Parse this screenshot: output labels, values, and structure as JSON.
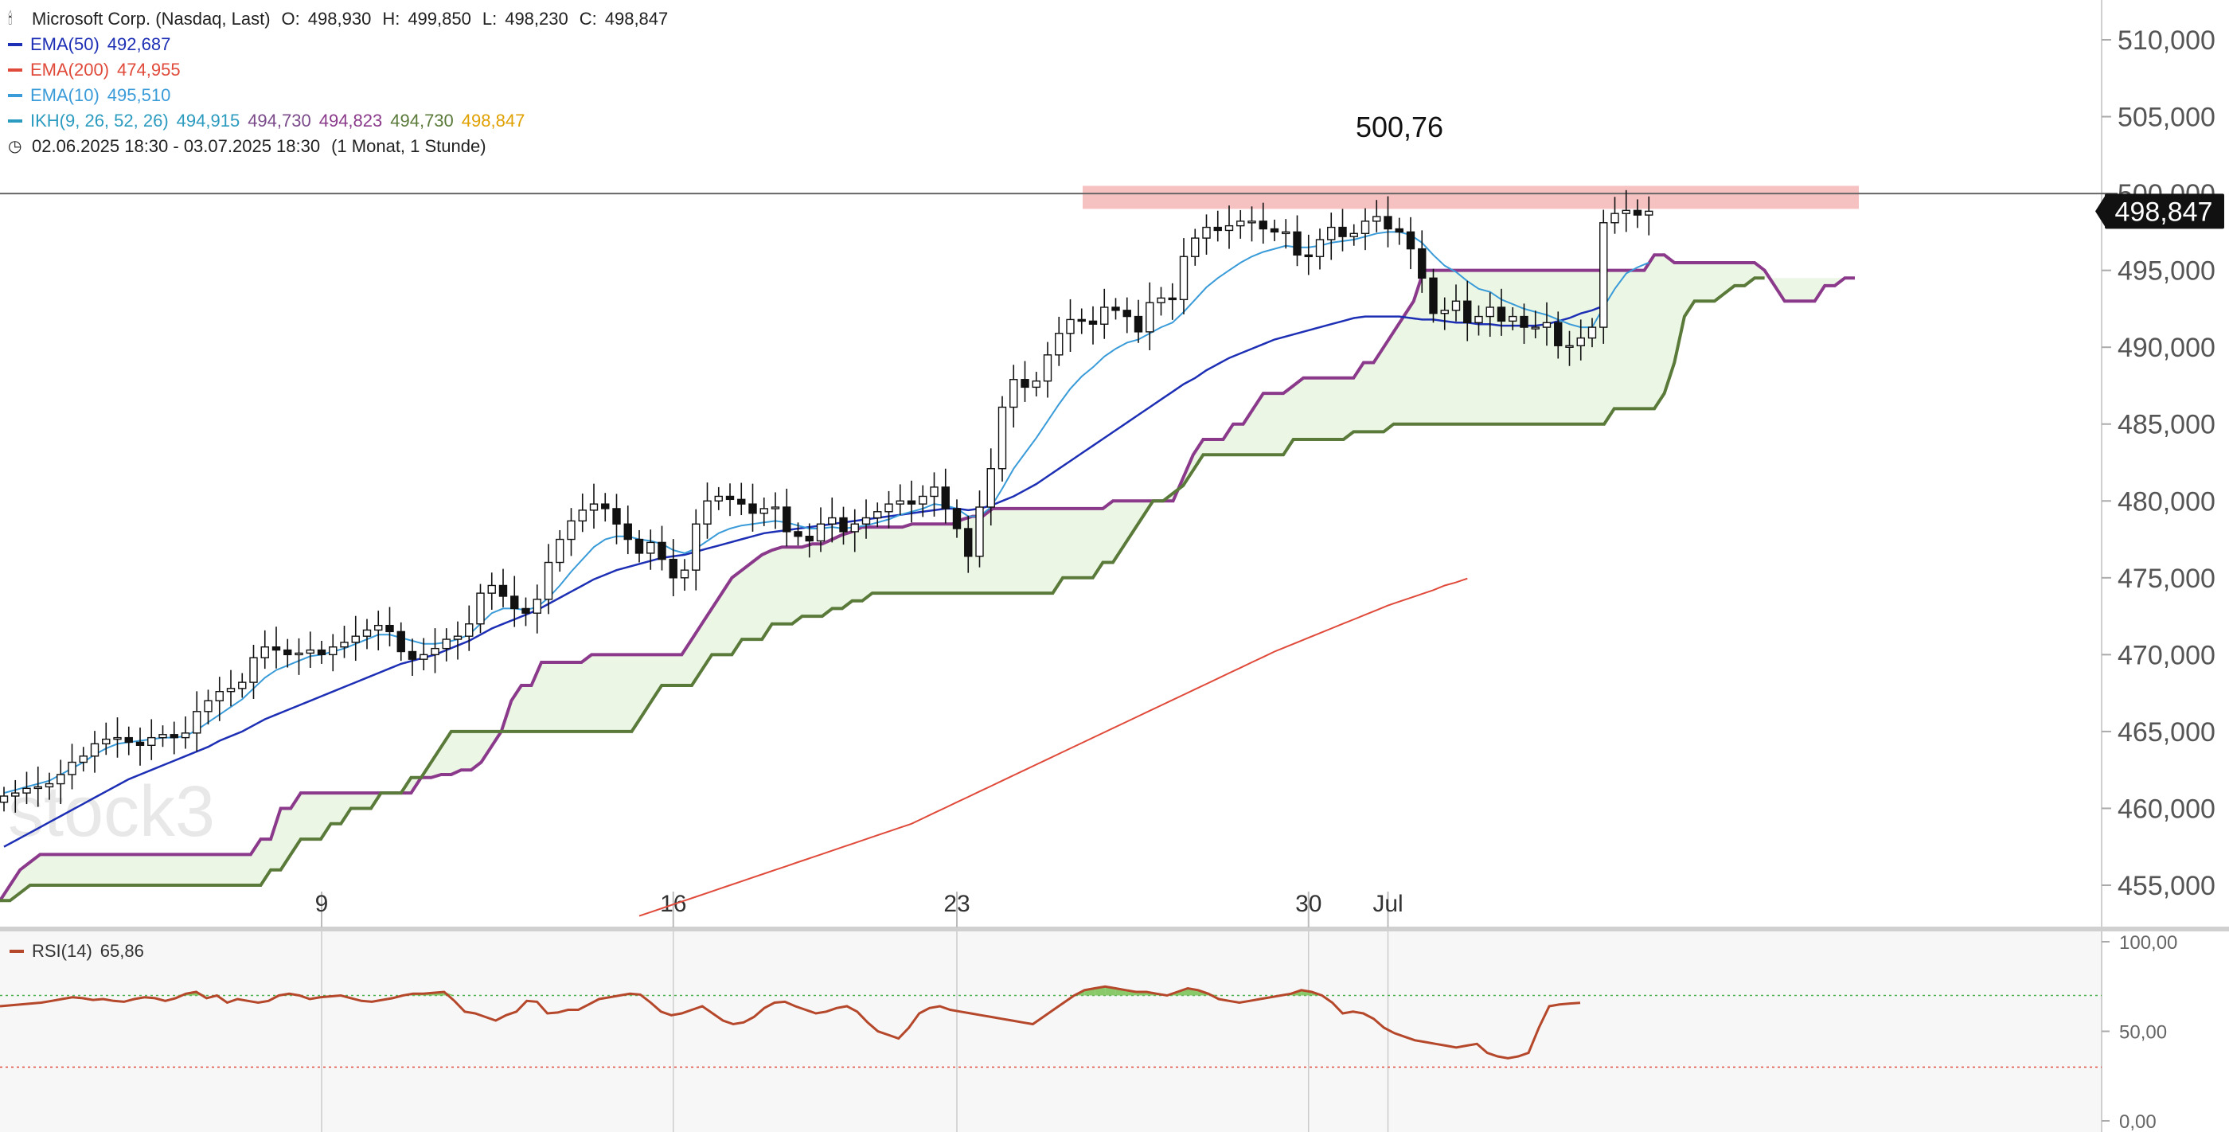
{
  "header": {
    "instrument": "Microsoft Corp. (Nasdaq, Last)",
    "ohlc": {
      "O": "498,930",
      "H": "499,850",
      "L": "498,230",
      "C": "498,847"
    },
    "indicators": [
      {
        "label": "EMA(50)",
        "values": [
          "492,687"
        ],
        "color": "#1d2fb4"
      },
      {
        "label": "EMA(200)",
        "values": [
          "474,955"
        ],
        "color": "#e04a3a"
      },
      {
        "label": "EMA(10)",
        "values": [
          "495,510"
        ],
        "color": "#3a9bd9"
      },
      {
        "label": "IKH(9, 26, 52, 26)",
        "values": [
          "494,915",
          "494,730",
          "494,823",
          "494,730",
          "498,847"
        ],
        "color": "#2b9bbf",
        "value_colors": [
          "#2b9bbf",
          "#7a4a8a",
          "#8b3a8b",
          "#5a7a3a",
          "#e0a000"
        ]
      }
    ],
    "range": "02.06.2025 18:30 - 03.07.2025 18:30",
    "period": "(1 Monat, 1 Stunde)"
  },
  "rsi": {
    "label": "RSI(14)",
    "value": "65,86",
    "ticks": [
      "100,00",
      "50,00",
      "0,00"
    ]
  },
  "watermark": "stock3",
  "chart_data": {
    "type": "candlestick",
    "x_labels": [
      {
        "text": "9",
        "bar": 28
      },
      {
        "text": "16",
        "bar": 59
      },
      {
        "text": "23",
        "bar": 84
      },
      {
        "text": "30",
        "bar": 115
      },
      {
        "text": "Jul",
        "bar": 122
      }
    ],
    "y_ticks": [
      "510,000",
      "505,000",
      "500,000",
      "495,000",
      "490,000",
      "485,000",
      "480,000",
      "475,000",
      "470,000",
      "465,000",
      "460,000",
      "455,000"
    ],
    "ylim": [
      453,
      512
    ],
    "current_price": "498,847",
    "current_price_value": 498.847,
    "horizontal_line": 500.0,
    "resistance_zone": [
      499.0,
      500.5
    ],
    "peak_annotation": {
      "text": "500,76",
      "value": 500.76
    },
    "series_close": [
      460.8,
      461.0,
      461.3,
      461.4,
      461.6,
      462.2,
      463.0,
      463.4,
      464.2,
      464.5,
      464.6,
      464.3,
      464.1,
      464.6,
      464.8,
      464.6,
      464.9,
      466.3,
      467.0,
      467.6,
      467.8,
      468.2,
      469.8,
      470.5,
      470.3,
      470.0,
      470.1,
      470.3,
      470.0,
      470.5,
      470.8,
      471.2,
      471.6,
      471.9,
      471.5,
      470.2,
      469.7,
      470.0,
      470.4,
      471.0,
      471.2,
      472.0,
      474.0,
      474.5,
      473.8,
      473.0,
      472.7,
      473.6,
      476.0,
      477.5,
      478.7,
      479.4,
      479.8,
      479.5,
      478.5,
      477.5,
      476.6,
      477.3,
      476.2,
      475.0,
      475.5,
      478.5,
      480.0,
      480.3,
      480.1,
      479.8,
      479.2,
      479.5,
      479.6,
      478.0,
      477.7,
      477.4,
      478.5,
      478.9,
      478.0,
      478.5,
      478.9,
      479.3,
      479.8,
      480.0,
      479.8,
      480.3,
      480.9,
      479.5,
      478.2,
      476.4,
      479.6,
      482.1,
      486.1,
      487.9,
      487.4,
      487.8,
      489.5,
      490.9,
      491.8,
      491.7,
      491.5,
      492.6,
      492.4,
      492.0,
      491.0,
      492.9,
      493.2,
      493.1,
      495.9,
      497.1,
      497.8,
      497.6,
      497.9,
      498.2,
      498.2,
      497.7,
      497.5,
      497.5,
      496.0,
      495.9,
      497.0,
      497.8,
      497.2,
      497.4,
      498.2,
      498.5,
      497.7,
      497.5,
      496.4,
      494.5,
      492.2,
      492.4,
      493.0,
      491.6,
      492.0,
      492.6,
      491.7,
      492.0,
      491.3,
      491.3,
      491.6,
      490.1,
      490.1,
      490.6,
      491.3,
      498.1,
      498.7,
      498.9,
      498.6,
      498.847
    ],
    "series_rsi": [
      64,
      64.5,
      65,
      65.5,
      66,
      67,
      68,
      69,
      68.5,
      67.5,
      68,
      67,
      66.5,
      68,
      69,
      68.5,
      67,
      68.5,
      71,
      72,
      68.5,
      70,
      66,
      68,
      67,
      66,
      67,
      70,
      71,
      70,
      68,
      69,
      69.5,
      70,
      68.5,
      67,
      66.5,
      67.5,
      68.5,
      70,
      71,
      71,
      71.5,
      72,
      67,
      61,
      60,
      58,
      56,
      59,
      61,
      67,
      66.5,
      60,
      60.5,
      62,
      62,
      65,
      68,
      69,
      70,
      71,
      70.5,
      66,
      61,
      59,
      60,
      62,
      64,
      60,
      56,
      54,
      55,
      58,
      63,
      66,
      66.5,
      64,
      62,
      60,
      61,
      63,
      64,
      61,
      55,
      50,
      48,
      46,
      52,
      60,
      63,
      64,
      62,
      61,
      60,
      59,
      58,
      57,
      56,
      55,
      54,
      58,
      62,
      66,
      70,
      73,
      74,
      75,
      74,
      73,
      72,
      72,
      71,
      70,
      72,
      74,
      73,
      71,
      68,
      67,
      66,
      67,
      68,
      69,
      70,
      71,
      73,
      72,
      70,
      66,
      60,
      61,
      60,
      57,
      52,
      49,
      47,
      45,
      44,
      43,
      42,
      41,
      42,
      43,
      38,
      36,
      35,
      36,
      38,
      52,
      64,
      65,
      65.5,
      65.86
    ],
    "series_ema10": [
      461,
      461.2,
      461.4,
      461.6,
      461.8,
      462.2,
      462.6,
      463.0,
      463.5,
      463.9,
      464.2,
      464.3,
      464.4,
      464.5,
      464.6,
      464.6,
      464.7,
      465.1,
      465.6,
      466.1,
      466.6,
      467.1,
      467.8,
      468.5,
      469.0,
      469.3,
      469.6,
      469.9,
      470.0,
      470.2,
      470.4,
      470.7,
      471.0,
      471.3,
      471.3,
      471.1,
      470.9,
      470.7,
      470.7,
      470.8,
      471.0,
      471.3,
      472.0,
      472.7,
      473.0,
      473.0,
      472.9,
      473.1,
      473.7,
      474.5,
      475.4,
      476.2,
      477.0,
      477.5,
      477.7,
      477.7,
      477.5,
      477.4,
      477.2,
      476.8,
      476.6,
      476.9,
      477.4,
      477.9,
      478.2,
      478.4,
      478.5,
      478.6,
      478.7,
      478.6,
      478.4,
      478.2,
      478.2,
      478.3,
      478.2,
      478.3,
      478.4,
      478.6,
      478.8,
      479.1,
      479.3,
      479.5,
      479.8,
      479.7,
      479.5,
      479.0,
      479.0,
      479.6,
      480.8,
      482.1,
      483.1,
      484.1,
      485.2,
      486.3,
      487.3,
      488.1,
      488.7,
      489.4,
      489.9,
      490.3,
      490.5,
      490.9,
      491.3,
      491.6,
      492.3,
      493.1,
      493.9,
      494.5,
      495.0,
      495.5,
      495.9,
      496.2,
      496.4,
      496.6,
      496.5,
      496.5,
      496.6,
      496.8,
      496.9,
      497.0,
      497.2,
      497.4,
      497.5,
      497.5,
      497.3,
      496.8,
      496.0,
      495.3,
      494.9,
      494.3,
      493.8,
      493.6,
      493.1,
      492.8,
      492.5,
      492.3,
      492.1,
      491.8,
      491.5,
      491.3,
      491.3,
      492.6,
      493.8,
      494.8,
      495.2,
      495.51
    ],
    "series_ema50": [
      457.5,
      457.9,
      458.3,
      458.7,
      459.1,
      459.5,
      459.9,
      460.3,
      460.7,
      461.1,
      461.5,
      461.9,
      462.2,
      462.5,
      462.8,
      463.1,
      463.4,
      463.7,
      464.0,
      464.4,
      464.7,
      465.0,
      465.4,
      465.8,
      466.1,
      466.4,
      466.7,
      467.0,
      467.3,
      467.6,
      467.9,
      468.2,
      468.5,
      468.8,
      469.1,
      469.4,
      469.6,
      469.8,
      470.0,
      470.3,
      470.6,
      470.9,
      471.3,
      471.7,
      472.0,
      472.3,
      472.6,
      472.9,
      473.3,
      473.7,
      474.1,
      474.5,
      474.9,
      475.2,
      475.5,
      475.7,
      475.9,
      476.1,
      476.3,
      476.4,
      476.5,
      476.7,
      476.9,
      477.1,
      477.3,
      477.5,
      477.7,
      477.9,
      478.0,
      478.1,
      478.2,
      478.3,
      478.4,
      478.5,
      478.6,
      478.7,
      478.8,
      478.9,
      479.0,
      479.1,
      479.2,
      479.3,
      479.4,
      479.5,
      479.5,
      479.4,
      479.5,
      479.7,
      480.0,
      480.3,
      480.7,
      481.1,
      481.6,
      482.1,
      482.6,
      483.1,
      483.6,
      484.1,
      484.6,
      485.1,
      485.6,
      486.1,
      486.6,
      487.1,
      487.6,
      488.0,
      488.5,
      488.9,
      489.3,
      489.6,
      489.9,
      490.2,
      490.5,
      490.7,
      490.9,
      491.1,
      491.3,
      491.5,
      491.7,
      491.9,
      492.0,
      492.0,
      492.0,
      492.0,
      491.9,
      491.8,
      491.8,
      491.7,
      491.6,
      491.6,
      491.5,
      491.5,
      491.4,
      491.4,
      491.4,
      491.4,
      491.5,
      491.7,
      491.9,
      492.2,
      492.4,
      492.687
    ],
    "series_ema200_start_bar": 56,
    "series_ema200": [
      453.0,
      453.25,
      453.5,
      453.75,
      454.0,
      454.25,
      454.5,
      454.75,
      455.0,
      455.25,
      455.5,
      455.75,
      456.0,
      456.25,
      456.5,
      456.75,
      457.0,
      457.25,
      457.5,
      457.75,
      458.0,
      458.25,
      458.5,
      458.75,
      459.0,
      459.35,
      459.7,
      460.05,
      460.4,
      460.75,
      461.1,
      461.45,
      461.8,
      462.15,
      462.5,
      462.85,
      463.2,
      463.55,
      463.9,
      464.25,
      464.6,
      464.95,
      465.3,
      465.65,
      466.0,
      466.35,
      466.7,
      467.05,
      467.4,
      467.75,
      468.1,
      468.45,
      468.8,
      469.15,
      469.5,
      469.85,
      470.2,
      470.5,
      470.8,
      471.1,
      471.4,
      471.7,
      472.0,
      472.3,
      472.6,
      472.9,
      473.2,
      473.45,
      473.7,
      473.95,
      474.2,
      474.5,
      474.7,
      474.955
    ],
    "series_kumo_top": [
      454,
      455,
      456,
      456.5,
      457,
      457,
      457,
      457,
      457,
      457,
      457,
      457,
      457,
      457,
      457,
      457,
      457,
      457,
      457,
      457,
      457,
      457,
      457,
      457,
      457,
      457,
      458,
      458,
      460,
      460,
      461,
      461,
      461,
      461,
      461,
      461,
      461,
      461,
      461,
      461,
      461,
      461,
      462,
      462,
      462.2,
      462.2,
      462.5,
      462.5,
      463,
      464,
      465,
      467,
      468,
      468,
      469.5,
      469.5,
      469.5,
      469.5,
      469.5,
      470,
      470,
      470,
      470,
      470,
      470,
      470,
      470,
      470,
      470,
      471,
      472,
      473,
      474,
      475,
      475.5,
      476,
      476.5,
      476.8,
      477,
      477,
      477,
      477.2,
      477.2,
      477.5,
      477.8,
      478,
      478.3,
      478.3,
      478.3,
      478.3,
      478.3,
      478.5,
      478.5,
      478.5,
      478.5,
      478.5,
      478.8,
      479,
      479,
      479.5,
      479.5,
      479.5,
      479.5,
      479.5,
      479.5,
      479.5,
      479.5,
      479.5,
      479.5,
      479.5,
      479.5,
      480,
      480,
      480,
      480,
      480,
      480,
      480,
      481.5,
      483,
      484,
      484,
      484,
      485,
      485,
      486,
      487,
      487,
      487,
      487.5,
      488,
      488,
      488,
      488,
      488,
      488,
      489,
      489,
      490,
      491,
      492,
      493,
      495,
      495,
      495,
      495,
      495,
      495,
      495,
      495,
      495,
      495,
      495,
      495,
      495,
      495,
      495,
      495,
      495,
      495,
      495,
      495,
      495,
      495,
      495,
      496,
      496,
      495.5,
      495.5,
      495.5,
      495.5,
      495.5,
      495.5,
      495.5,
      495.5,
      495.5,
      495,
      494,
      493,
      493,
      493,
      493,
      494,
      494,
      494.5,
      494.5
    ],
    "series_kumo_bottom": [
      454,
      454,
      454.5,
      455,
      455,
      455,
      455,
      455,
      455,
      455,
      455,
      455,
      455,
      455,
      455,
      455,
      455,
      455,
      455,
      455,
      455,
      455,
      455,
      455,
      455,
      455,
      455,
      456,
      456,
      457,
      458,
      458,
      458,
      459,
      459,
      460,
      460,
      460,
      461,
      461,
      461,
      462,
      462,
      463,
      464,
      465,
      465,
      465,
      465,
      465,
      465,
      465,
      465,
      465,
      465,
      465,
      465,
      465,
      465,
      465,
      465,
      465,
      465,
      465,
      466,
      467,
      468,
      468,
      468,
      468,
      469,
      470,
      470,
      470,
      471,
      471,
      471,
      472,
      472,
      472,
      472.5,
      472.5,
      472.5,
      473,
      473,
      473.5,
      473.5,
      474,
      474,
      474,
      474,
      474,
      474,
      474,
      474,
      474,
      474,
      474,
      474,
      474,
      474,
      474,
      474,
      474,
      474,
      474,
      475,
      475,
      475,
      475,
      476,
      476,
      477,
      478,
      479,
      480,
      480,
      480.5,
      481,
      482,
      483,
      483,
      483,
      483,
      483,
      483,
      483,
      483,
      483,
      484,
      484,
      484,
      484,
      484,
      484,
      484.5,
      484.5,
      484.5,
      484.5,
      485,
      485,
      485,
      485,
      485,
      485,
      485,
      485,
      485,
      485,
      485,
      485,
      485,
      485,
      485,
      485,
      485,
      485,
      485,
      485,
      485,
      485,
      486,
      486,
      486,
      486,
      486,
      487,
      489,
      492,
      493,
      493,
      493,
      493.5,
      494,
      494,
      494.5,
      494.5
    ]
  }
}
